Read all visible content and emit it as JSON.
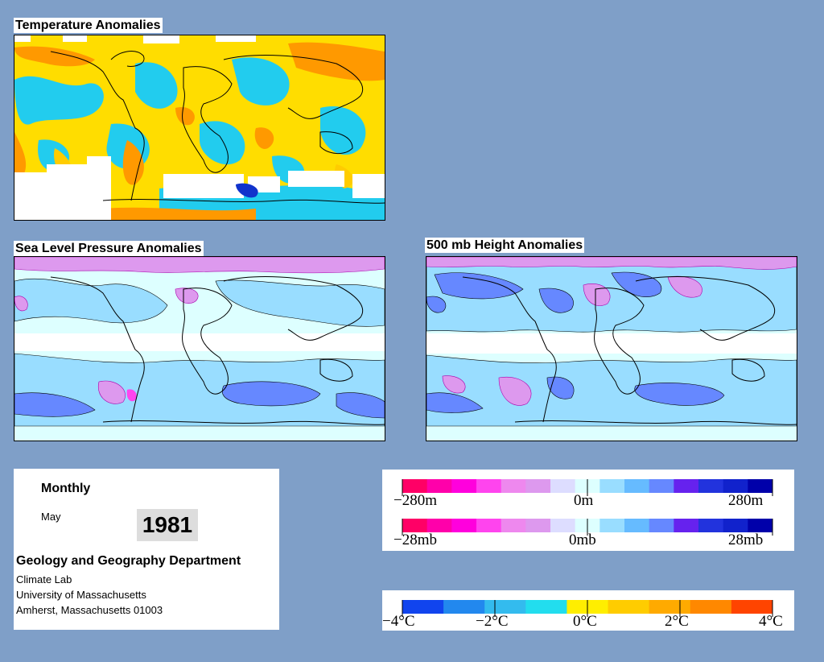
{
  "maps": {
    "temperature": {
      "title": "Temperature Anomalies"
    },
    "slp": {
      "title": "Sea Level Pressure Anomalies"
    },
    "height500": {
      "title": "500 mb Height Anomalies"
    }
  },
  "info": {
    "period": "Monthly",
    "month": "May",
    "year": "1981",
    "department": "Geology and Geography Department",
    "lab": "Climate Lab",
    "university": "University of Massachusetts",
    "address": "Amherst, Massachusetts 01003"
  },
  "legends": {
    "height": {
      "min": "−280m",
      "mid": "0m",
      "max": "280m"
    },
    "pressure": {
      "min": "−28mb",
      "mid": "0mb",
      "max": "28mb"
    },
    "temperature": {
      "labels": [
        "−4°C",
        "−2°C",
        "0°C",
        "2°C",
        "4°C"
      ]
    }
  },
  "colors": {
    "background": "#7f9fc8",
    "anomaly_scale": [
      "#ff0066",
      "#ff00aa",
      "#ff00dd",
      "#ff44ee",
      "#ee88ee",
      "#dd99ee",
      "#ddddff",
      "#ddffff",
      "#99ddff",
      "#66bbff",
      "#6688ff",
      "#6622ee",
      "#2233dd",
      "#1122cc",
      "#0000aa"
    ],
    "temperature_scale": [
      "#1144ee",
      "#2288ee",
      "#33bbee",
      "#22ddee",
      "#ffee00",
      "#ffcc00",
      "#ffaa00",
      "#ff8800",
      "#ff4400"
    ]
  }
}
